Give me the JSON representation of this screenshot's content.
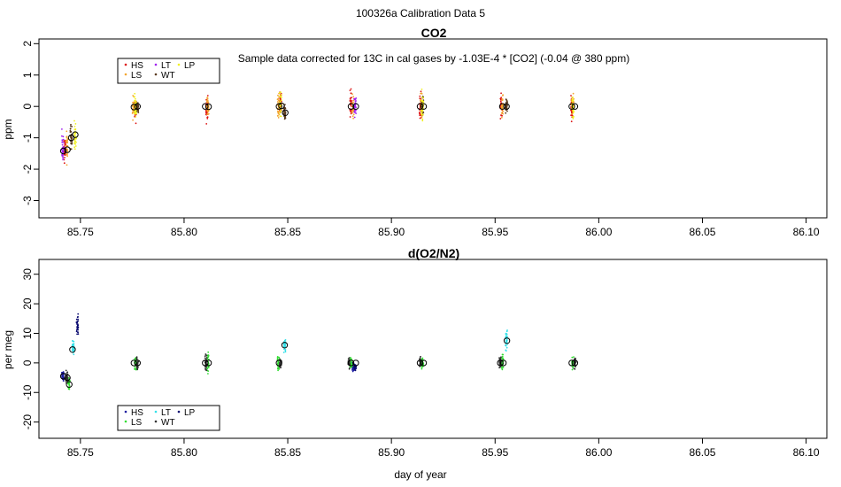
{
  "title": "100326a   Calibration Data 5",
  "xlabel": "day of year",
  "x_ticks": [
    "85.75",
    "85.80",
    "85.85",
    "85.90",
    "85.95",
    "86.00",
    "86.05",
    "86.10"
  ],
  "colors": {
    "HS": "#dd1111",
    "LS": "#f3a530",
    "LT": "#a020f0",
    "WT": "#5a3a1e",
    "LP": "#f0f020",
    "HS2": "#1a1aa0",
    "LS2": "#33dd33",
    "LT2": "#33e0e8",
    "WT2": "#333333",
    "LP2": "#0a0a70"
  },
  "chart_data": [
    {
      "type": "scatter",
      "title": "CO2",
      "note": "Sample data corrected for 13C in cal gases by -1.03E-4 * [CO2] (-0.04 @ 380 ppm)",
      "ylabel": "ppm",
      "xlim": [
        85.73,
        86.11
      ],
      "ylim": [
        -3.55,
        2.15
      ],
      "y_ticks": [
        "-3",
        "-2",
        "-1",
        "0",
        "1",
        "2"
      ],
      "legend": {
        "position": "top-left",
        "entries": [
          "HS",
          "LS",
          "LT",
          "WT",
          "LP"
        ]
      },
      "series": [
        {
          "name": "HS",
          "color_key": "HS",
          "x": [
            85.7425,
            85.7765,
            85.811,
            85.8465,
            85.8805,
            85.914,
            85.953,
            85.987
          ],
          "spread": [
            0.9,
            0.6,
            0.7,
            0.7,
            0.7,
            0.7,
            0.8,
            0.6
          ],
          "center": [
            -1.4,
            -0.1,
            -0.1,
            0.1,
            0.1,
            0.0,
            0.0,
            0.0
          ]
        },
        {
          "name": "LS",
          "color_key": "LS",
          "x": [
            85.7435,
            85.7755,
            85.8115,
            85.8455,
            85.8815,
            85.9145,
            85.9535,
            85.9875
          ],
          "spread": [
            0.9,
            0.6,
            0.6,
            0.7,
            0.6,
            0.7,
            0.7,
            0.6
          ],
          "center": [
            -1.3,
            0.0,
            0.0,
            0.0,
            0.0,
            0.0,
            0.0,
            0.0
          ]
        },
        {
          "name": "LT",
          "color_key": "LT",
          "x": [
            85.7415,
            85.8825
          ],
          "spread": [
            0.9,
            0.6
          ],
          "center": [
            -1.4,
            0.0
          ]
        },
        {
          "name": "WT",
          "color_key": "WT",
          "x": [
            85.7455,
            85.7775,
            85.8485,
            85.915,
            85.9555
          ],
          "spread": [
            0.8,
            0.4,
            0.4,
            0.5,
            0.5
          ],
          "center": [
            -1.0,
            0.0,
            -0.2,
            0.0,
            0.0
          ]
        },
        {
          "name": "LP",
          "color_key": "LP",
          "x": [
            85.7475,
            85.7765,
            85.8465,
            85.915,
            85.9875
          ],
          "spread": [
            0.8,
            0.5,
            0.6,
            0.7,
            0.7
          ],
          "center": [
            -0.9,
            0.0,
            0.1,
            0.0,
            0.0
          ]
        }
      ],
      "means": [
        {
          "x": 85.7418,
          "y": -1.42
        },
        {
          "x": 85.7437,
          "y": -1.38
        },
        {
          "x": 85.7456,
          "y": -1.0
        },
        {
          "x": 85.7475,
          "y": -0.9
        },
        {
          "x": 85.7758,
          "y": -0.02
        },
        {
          "x": 85.7775,
          "y": 0.0
        },
        {
          "x": 85.8102,
          "y": 0.0
        },
        {
          "x": 85.8118,
          "y": -0.01
        },
        {
          "x": 85.8458,
          "y": 0.0
        },
        {
          "x": 85.8488,
          "y": -0.2
        },
        {
          "x": 85.847,
          "y": 0.02
        },
        {
          "x": 85.8805,
          "y": 0.0
        },
        {
          "x": 85.8828,
          "y": 0.0
        },
        {
          "x": 85.9138,
          "y": 0.0
        },
        {
          "x": 85.9155,
          "y": 0.0
        },
        {
          "x": 85.9535,
          "y": 0.0
        },
        {
          "x": 85.9555,
          "y": 0.0
        },
        {
          "x": 85.987,
          "y": 0.0
        },
        {
          "x": 85.9885,
          "y": 0.0
        }
      ]
    },
    {
      "type": "scatter",
      "title": "d(O2/N2)",
      "ylabel": "per meg",
      "xlim": [
        85.73,
        86.11
      ],
      "ylim": [
        -25.5,
        35
      ],
      "y_ticks": [
        "-20",
        "-10",
        "0",
        "10",
        "20",
        "30"
      ],
      "legend": {
        "position": "bottom-left",
        "entries": [
          "HS",
          "LS",
          "LT",
          "WT",
          "LP"
        ]
      },
      "series": [
        {
          "name": "HS",
          "color_key": "HS2",
          "x": [
            85.7415,
            85.8815
          ],
          "spread": [
            3,
            2.5
          ],
          "center": [
            -4.5,
            -1.5
          ]
        },
        {
          "name": "LS",
          "color_key": "LS2",
          "x": [
            85.7445,
            85.7765,
            85.8115,
            85.8455,
            85.8805,
            85.915,
            85.9535,
            85.9875
          ],
          "spread": [
            4,
            5,
            7,
            5,
            3,
            3,
            5,
            3
          ],
          "center": [
            -7,
            0,
            0,
            0,
            0,
            0,
            0,
            0
          ]
        },
        {
          "name": "LT",
          "color_key": "LT2",
          "x": [
            85.7465,
            85.8485,
            85.9555
          ],
          "spread": [
            4,
            4,
            6
          ],
          "center": [
            5,
            6,
            8
          ]
        },
        {
          "name": "WT",
          "color_key": "WT2",
          "x": [
            85.7435,
            85.7775,
            85.8105,
            85.8465,
            85.8795,
            85.914,
            85.9525,
            85.9885
          ],
          "spread": [
            3,
            4,
            6,
            3,
            3,
            2.5,
            4,
            3
          ],
          "center": [
            -5,
            0,
            0,
            0,
            0,
            0,
            0,
            0
          ]
        },
        {
          "name": "LP",
          "color_key": "LP2",
          "x": [
            85.7485,
            85.8825
          ],
          "spread": [
            6,
            2
          ],
          "center": [
            13,
            -1.5
          ]
        }
      ],
      "means": [
        {
          "x": 85.7418,
          "y": -4.5
        },
        {
          "x": 85.7437,
          "y": -5.0
        },
        {
          "x": 85.7446,
          "y": -7.3
        },
        {
          "x": 85.7462,
          "y": 4.5
        },
        {
          "x": 85.7758,
          "y": 0.0
        },
        {
          "x": 85.7775,
          "y": 0.0
        },
        {
          "x": 85.8102,
          "y": 0.0
        },
        {
          "x": 85.8118,
          "y": 0.0
        },
        {
          "x": 85.8458,
          "y": 0.0
        },
        {
          "x": 85.8485,
          "y": 6.0
        },
        {
          "x": 85.8805,
          "y": 0.0
        },
        {
          "x": 85.8828,
          "y": 0.0
        },
        {
          "x": 85.9138,
          "y": 0.0
        },
        {
          "x": 85.9155,
          "y": 0.0
        },
        {
          "x": 85.9525,
          "y": 0.0
        },
        {
          "x": 85.954,
          "y": 0.0
        },
        {
          "x": 85.9557,
          "y": 7.5
        },
        {
          "x": 85.987,
          "y": 0.0
        },
        {
          "x": 85.9885,
          "y": 0.0
        }
      ]
    }
  ]
}
